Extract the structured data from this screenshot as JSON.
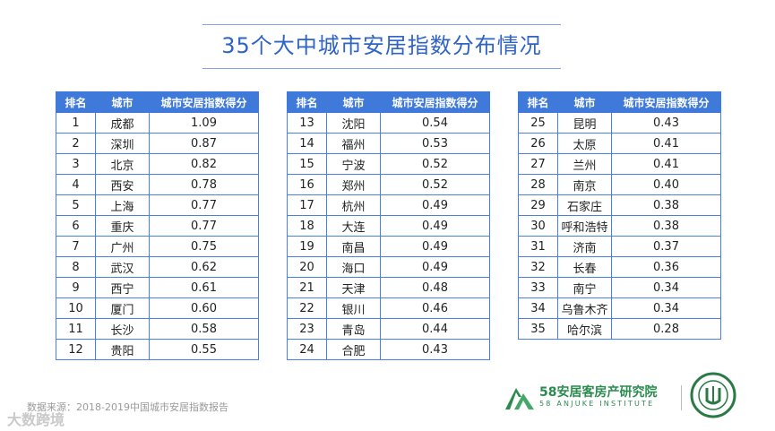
{
  "title": "35个大中城市安居指数分布情况",
  "table": {
    "headers": [
      "排名",
      "城市",
      "城市安居指数得分"
    ],
    "groups": [
      [
        {
          "rank": "1",
          "city": "成都",
          "score": "1.09"
        },
        {
          "rank": "2",
          "city": "深圳",
          "score": "0.87"
        },
        {
          "rank": "3",
          "city": "北京",
          "score": "0.82"
        },
        {
          "rank": "4",
          "city": "西安",
          "score": "0.78"
        },
        {
          "rank": "5",
          "city": "上海",
          "score": "0.77"
        },
        {
          "rank": "6",
          "city": "重庆",
          "score": "0.77"
        },
        {
          "rank": "7",
          "city": "广州",
          "score": "0.75"
        },
        {
          "rank": "8",
          "city": "武汉",
          "score": "0.62"
        },
        {
          "rank": "9",
          "city": "西宁",
          "score": "0.61"
        },
        {
          "rank": "10",
          "city": "厦门",
          "score": "0.60"
        },
        {
          "rank": "11",
          "city": "长沙",
          "score": "0.58"
        },
        {
          "rank": "12",
          "city": "贵阳",
          "score": "0.55"
        }
      ],
      [
        {
          "rank": "13",
          "city": "沈阳",
          "score": "0.54"
        },
        {
          "rank": "14",
          "city": "福州",
          "score": "0.53"
        },
        {
          "rank": "15",
          "city": "宁波",
          "score": "0.52"
        },
        {
          "rank": "16",
          "city": "郑州",
          "score": "0.52"
        },
        {
          "rank": "17",
          "city": "杭州",
          "score": "0.49"
        },
        {
          "rank": "18",
          "city": "大连",
          "score": "0.49"
        },
        {
          "rank": "19",
          "city": "南昌",
          "score": "0.49"
        },
        {
          "rank": "20",
          "city": "海口",
          "score": "0.49"
        },
        {
          "rank": "21",
          "city": "天津",
          "score": "0.48"
        },
        {
          "rank": "22",
          "city": "银川",
          "score": "0.46"
        },
        {
          "rank": "23",
          "city": "青岛",
          "score": "0.44"
        },
        {
          "rank": "24",
          "city": "合肥",
          "score": "0.43"
        }
      ],
      [
        {
          "rank": "25",
          "city": "昆明",
          "score": "0.43"
        },
        {
          "rank": "26",
          "city": "太原",
          "score": "0.41"
        },
        {
          "rank": "27",
          "city": "兰州",
          "score": "0.41"
        },
        {
          "rank": "28",
          "city": "南京",
          "score": "0.40"
        },
        {
          "rank": "29",
          "city": "石家庄",
          "score": "0.38"
        },
        {
          "rank": "30",
          "city": "呼和浩特",
          "score": "0.38"
        },
        {
          "rank": "31",
          "city": "济南",
          "score": "0.37"
        },
        {
          "rank": "32",
          "city": "长春",
          "score": "0.36"
        },
        {
          "rank": "33",
          "city": "南宁",
          "score": "0.34"
        },
        {
          "rank": "34",
          "city": "乌鲁木齐",
          "score": "0.34"
        },
        {
          "rank": "35",
          "city": "哈尔滨",
          "score": "0.28"
        }
      ]
    ]
  },
  "source": "数据来源：2018-2019中国城市安居指数报告",
  "watermark": "大数跨境",
  "logo": {
    "name": "58安居客房产研究院",
    "subtitle": "58 ANJUKE INSTITUTE",
    "color": "#2a8b4f"
  },
  "colors": {
    "title": "#2f64c6",
    "header_bg": "#3f79da",
    "border": "#4a82d9"
  }
}
